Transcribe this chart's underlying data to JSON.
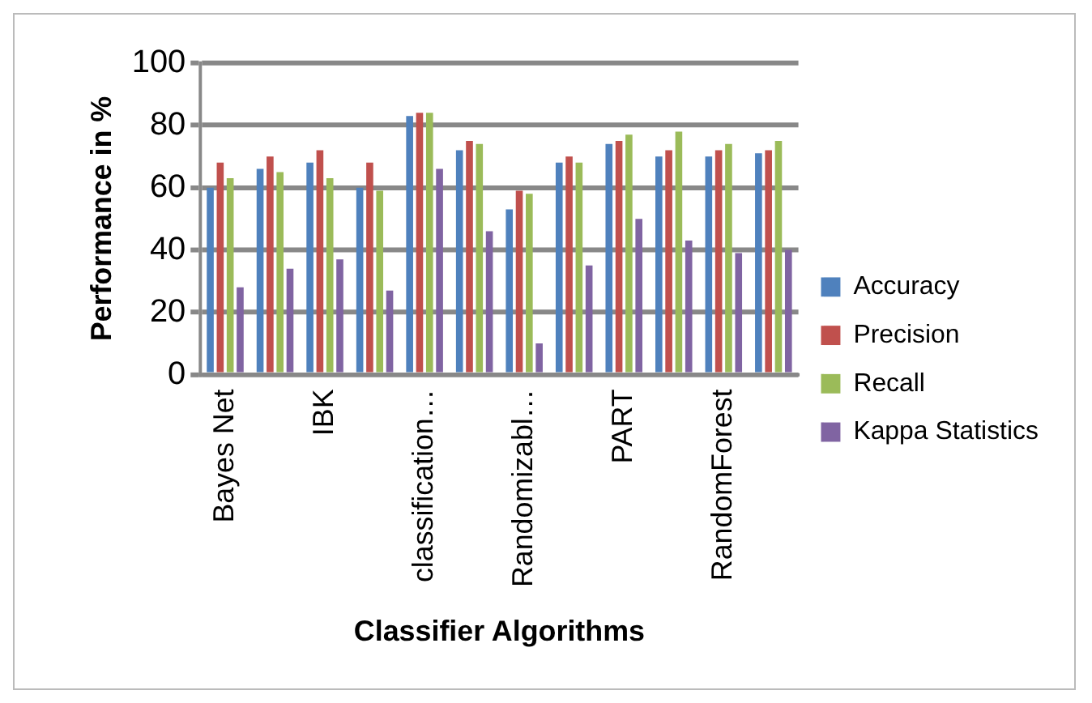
{
  "chart_data": {
    "type": "bar",
    "xlabel": "Classifier Algorithms",
    "ylabel": "Performance in %",
    "categories": [
      "Bayes Net",
      null,
      "IBK",
      null,
      "classification…",
      null,
      "Randomizabl…",
      null,
      "PART",
      null,
      "RandomForest",
      null
    ],
    "series": [
      {
        "name": "Accuracy",
        "color": "#4f81bd",
        "values": [
          60,
          66,
          68,
          60,
          83,
          72,
          53,
          68,
          74,
          70,
          70,
          71
        ]
      },
      {
        "name": "Precision",
        "color": "#c0504d",
        "values": [
          68,
          70,
          72,
          68,
          84,
          75,
          59,
          70,
          75,
          72,
          72,
          72
        ]
      },
      {
        "name": "Recall",
        "color": "#9bbb59",
        "values": [
          63,
          65,
          63,
          59,
          84,
          74,
          58,
          68,
          77,
          78,
          74,
          75
        ]
      },
      {
        "name": "Kappa Statistics",
        "color": "#8064a2",
        "values": [
          28,
          34,
          37,
          27,
          66,
          46,
          10,
          35,
          50,
          43,
          39,
          40
        ]
      }
    ],
    "ylim": [
      0,
      100
    ],
    "yticks": [
      0,
      20,
      40,
      60,
      80,
      100
    ],
    "grid": "y",
    "legend": "right"
  }
}
